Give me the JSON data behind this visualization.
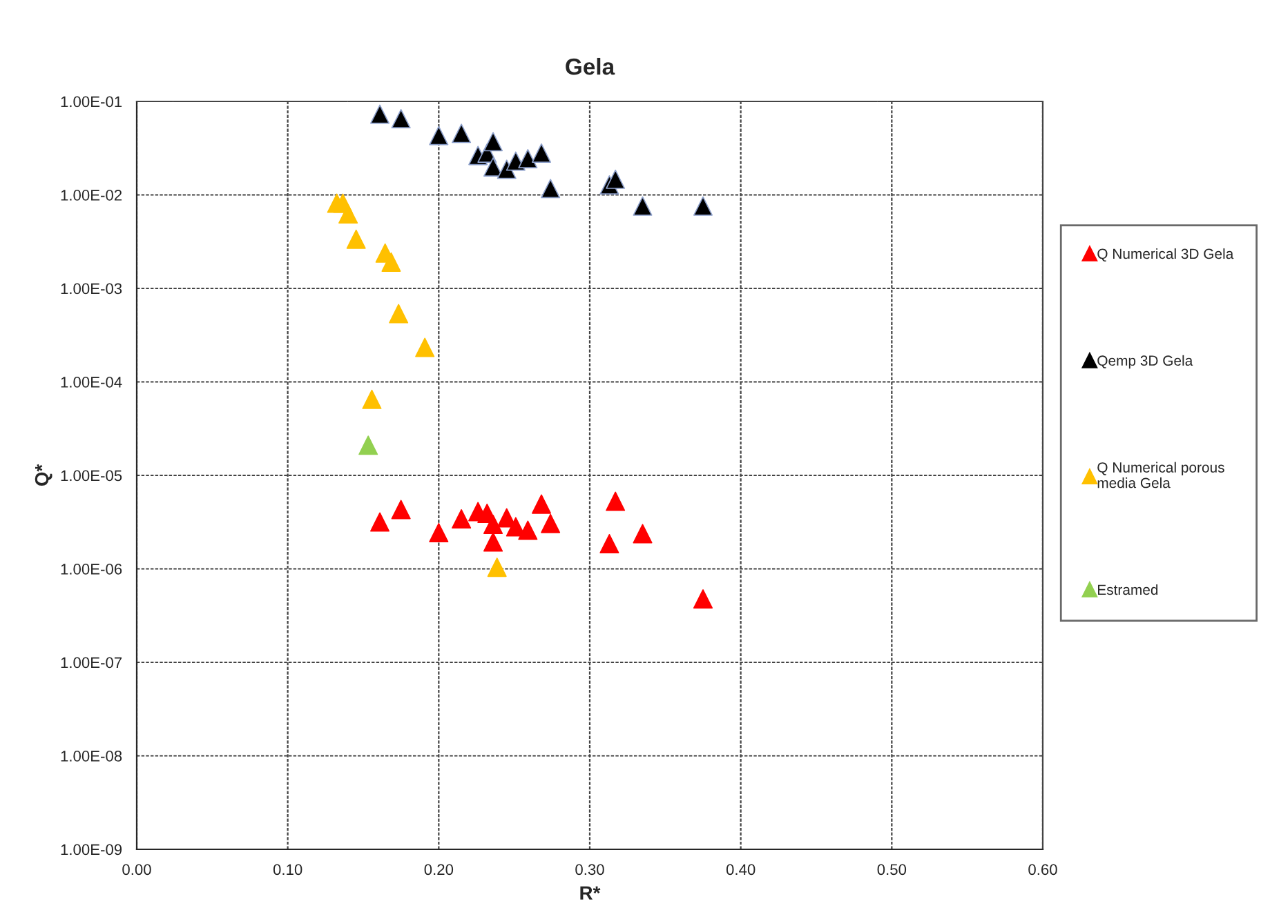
{
  "chart_data": {
    "type": "scatter",
    "title": "Gela",
    "xlabel": "R*",
    "ylabel": "Q*",
    "log": "y",
    "grid": true,
    "legend": "right",
    "marker": "triangle",
    "xlim": [
      0,
      0.6
    ],
    "xticks": [
      {
        "value": 0,
        "label": "0.00"
      },
      {
        "value": 0.1,
        "label": "0.10"
      },
      {
        "value": 0.2,
        "label": "0.20"
      },
      {
        "value": 0.3,
        "label": "0.30"
      },
      {
        "value": 0.4,
        "label": "0.40"
      },
      {
        "value": 0.5,
        "label": "0.50"
      },
      {
        "value": 0.6,
        "label": "0.60"
      }
    ],
    "ylim": [
      1e-09,
      0.1
    ],
    "yticks": [
      {
        "value": 1e-09,
        "label": "1.00E-09"
      },
      {
        "value": 1e-08,
        "label": "1.00E-08"
      },
      {
        "value": 1e-07,
        "label": "1.00E-07"
      },
      {
        "value": 1e-06,
        "label": "1.00E-06"
      },
      {
        "value": 1e-05,
        "label": "1.00E-05"
      },
      {
        "value": 0.0001,
        "label": "1.00E-04"
      },
      {
        "value": 0.001,
        "label": "1.00E-03"
      },
      {
        "value": 0.01,
        "label": "1.00E-02"
      },
      {
        "value": 0.1,
        "label": "1.00E-01"
      }
    ],
    "series": [
      {
        "name": "Q Numerical 3D Gela",
        "color": "#ff0000",
        "x": [
          0.161,
          0.175,
          0.2,
          0.215,
          0.226,
          0.232,
          0.236,
          0.236,
          0.245,
          0.251,
          0.259,
          0.268,
          0.274,
          0.313,
          0.317,
          0.335,
          0.375
        ],
        "values": [
          3.17e-06,
          4.31e-06,
          2.44e-06,
          3.43e-06,
          4.1e-06,
          3.93e-06,
          2.99e-06,
          1.94e-06,
          3.51e-06,
          2.82e-06,
          2.59e-06,
          4.93e-06,
          3.06e-06,
          1.86e-06,
          5.28e-06,
          2.38e-06,
          4.77e-07
        ]
      },
      {
        "name": "Qemp 3D Gela",
        "color": "#000000",
        "x": [
          0.161,
          0.175,
          0.2,
          0.215,
          0.226,
          0.232,
          0.236,
          0.236,
          0.245,
          0.251,
          0.259,
          0.268,
          0.274,
          0.313,
          0.317,
          0.335,
          0.375
        ],
        "values": [
          0.0731,
          0.0654,
          0.0431,
          0.0455,
          0.0264,
          0.028,
          0.0371,
          0.0199,
          0.0188,
          0.023,
          0.0244,
          0.028,
          0.0117,
          0.0128,
          0.0147,
          0.0076,
          0.0076
        ]
      },
      {
        "name": "Q Numerical porous\nmedia Gela",
        "color": "#ffc000",
        "x": [
          0.1325,
          0.1365,
          0.14,
          0.1453,
          0.1645,
          0.1685,
          0.1734,
          0.1908,
          0.1557,
          0.2386
        ],
        "values": [
          0.00815,
          0.00815,
          0.00627,
          0.00336,
          0.00239,
          0.00191,
          0.000537,
          0.000234,
          6.5e-05,
          1.04e-06
        ]
      },
      {
        "name": "Estramed",
        "color": "#92d050",
        "x": [
          0.1533
        ],
        "values": [
          2.1e-05
        ]
      }
    ]
  }
}
